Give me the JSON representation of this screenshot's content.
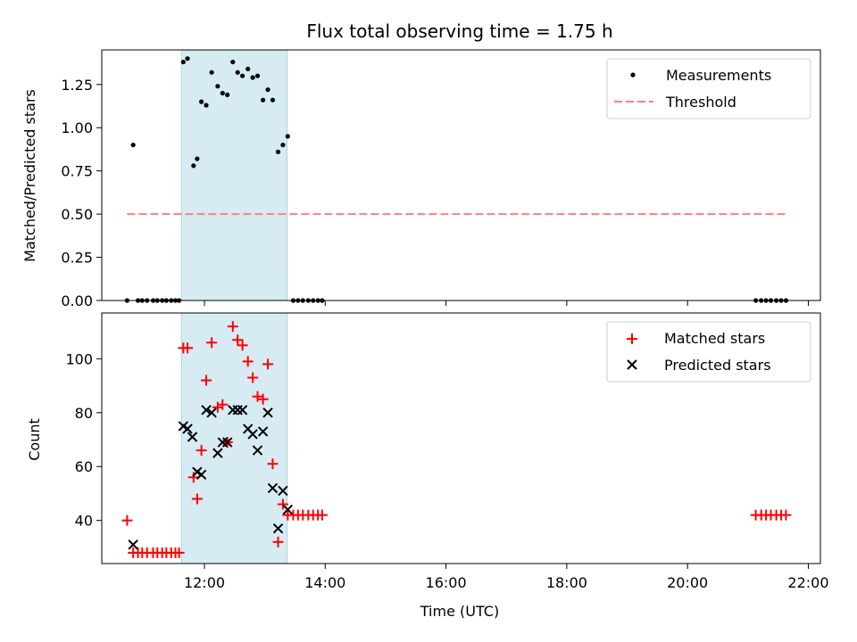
{
  "chart_data": [
    {
      "type": "scatter",
      "title": "Flux total observing time = 1.75 h",
      "xlabel": "",
      "ylabel": "Matched/Predicted stars",
      "xlim": [
        10.3,
        22.2
      ],
      "ylim": [
        0.0,
        1.45
      ],
      "yticks": [
        0.0,
        0.25,
        0.5,
        0.75,
        1.0,
        1.25
      ],
      "ytick_labels": [
        "0.00",
        "0.25",
        "0.50",
        "0.75",
        "1.00",
        "1.25"
      ],
      "xticks": [
        12,
        14,
        16,
        18,
        20,
        22
      ],
      "shaded_span": [
        11.62,
        13.37
      ],
      "legend": [
        "Measurements",
        "Threshold"
      ],
      "series": [
        {
          "name": "Measurements",
          "marker": "dot",
          "color": "#000000",
          "x": [
            10.72,
            10.82,
            10.9,
            10.97,
            11.05,
            11.15,
            11.22,
            11.3,
            11.37,
            11.45,
            11.52,
            11.58,
            11.65,
            11.72,
            11.82,
            11.88,
            11.95,
            12.03,
            12.12,
            12.22,
            12.3,
            12.38,
            12.47,
            12.55,
            12.63,
            12.72,
            12.8,
            12.88,
            12.97,
            13.05,
            13.13,
            13.22,
            13.3,
            13.38,
            13.47,
            13.55,
            13.63,
            13.72,
            13.8,
            13.88,
            13.95,
            21.13,
            21.22,
            21.3,
            21.38,
            21.47,
            21.55,
            21.63
          ],
          "y": [
            0.0,
            0.9,
            0.0,
            0.0,
            0.0,
            0.0,
            0.0,
            0.0,
            0.0,
            0.0,
            0.0,
            0.0,
            1.38,
            1.4,
            0.78,
            0.82,
            1.15,
            1.13,
            1.32,
            1.24,
            1.2,
            1.19,
            1.38,
            1.32,
            1.3,
            1.34,
            1.29,
            1.3,
            1.16,
            1.22,
            1.16,
            0.86,
            0.9,
            0.95,
            0.0,
            0.0,
            0.0,
            0.0,
            0.0,
            0.0,
            0.0,
            0.0,
            0.0,
            0.0,
            0.0,
            0.0,
            0.0,
            0.0
          ]
        },
        {
          "name": "Threshold",
          "line": "dashed",
          "color": "#ff7f7f",
          "x": [
            10.72,
            21.63
          ],
          "y": [
            0.5,
            0.5
          ]
        }
      ]
    },
    {
      "type": "scatter",
      "title": "",
      "xlabel": "Time (UTC)",
      "ylabel": "Count",
      "xlim": [
        10.3,
        22.2
      ],
      "ylim": [
        24,
        117
      ],
      "yticks": [
        40,
        60,
        80,
        100
      ],
      "ytick_labels": [
        "40",
        "60",
        "80",
        "100"
      ],
      "xticks": [
        12,
        14,
        16,
        18,
        20,
        22
      ],
      "xtick_labels": [
        "12:00",
        "14:00",
        "16:00",
        "18:00",
        "20:00",
        "22:00"
      ],
      "shaded_span": [
        11.62,
        13.37
      ],
      "legend": [
        "Matched stars",
        "Predicted stars"
      ],
      "series": [
        {
          "name": "Matched stars",
          "marker": "plus",
          "color": "#ff0000",
          "x": [
            10.72,
            10.82,
            10.9,
            10.97,
            11.05,
            11.15,
            11.22,
            11.3,
            11.37,
            11.45,
            11.52,
            11.58,
            11.65,
            11.72,
            11.82,
            11.88,
            11.95,
            12.03,
            12.12,
            12.22,
            12.3,
            12.38,
            12.47,
            12.55,
            12.63,
            12.72,
            12.8,
            12.88,
            12.97,
            13.05,
            13.13,
            13.22,
            13.3,
            13.38,
            13.47,
            13.55,
            13.63,
            13.72,
            13.8,
            13.88,
            13.95,
            21.13,
            21.22,
            21.3,
            21.38,
            21.47,
            21.55,
            21.63
          ],
          "y": [
            40,
            28,
            28,
            28,
            28,
            28,
            28,
            28,
            28,
            28,
            28,
            28,
            104,
            104,
            56,
            48,
            66,
            92,
            106,
            82,
            83,
            69,
            112,
            107,
            105,
            99,
            93,
            86,
            85,
            98,
            61,
            32,
            46,
            42,
            42,
            42,
            42,
            42,
            42,
            42,
            42,
            42,
            42,
            42,
            42,
            42,
            42,
            42
          ]
        },
        {
          "name": "Predicted stars",
          "marker": "x",
          "color": "#000000",
          "x": [
            10.82,
            11.65,
            11.72,
            11.8,
            11.88,
            11.95,
            12.03,
            12.12,
            12.22,
            12.3,
            12.38,
            12.47,
            12.55,
            12.63,
            12.72,
            12.8,
            12.88,
            12.97,
            13.05,
            13.13,
            13.22,
            13.3,
            13.38
          ],
          "y": [
            31,
            75,
            74,
            71,
            58,
            57,
            81,
            80,
            65,
            69,
            69,
            81,
            81,
            81,
            74,
            72,
            66,
            73,
            80,
            52,
            37,
            51,
            44
          ]
        }
      ]
    }
  ]
}
